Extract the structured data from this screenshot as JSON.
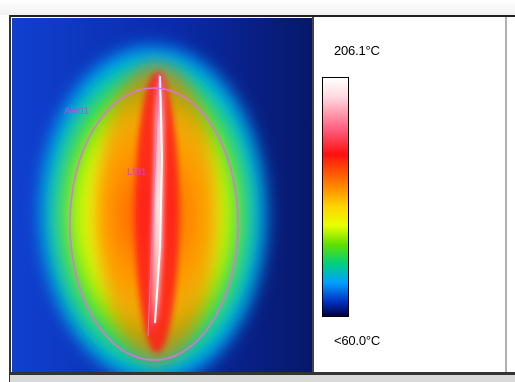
{
  "thermal": {
    "roi_ellipse_label": "AR01",
    "roi_line_label": "LI01"
  },
  "scale": {
    "max_label": "206.1°C",
    "min_label": "<60.0°C"
  },
  "colors": {
    "roi_outline": "#e070e0",
    "roi_label": "#d040e0",
    "background_hot": "#ff2020",
    "background_cold": "#0a1a8a"
  }
}
